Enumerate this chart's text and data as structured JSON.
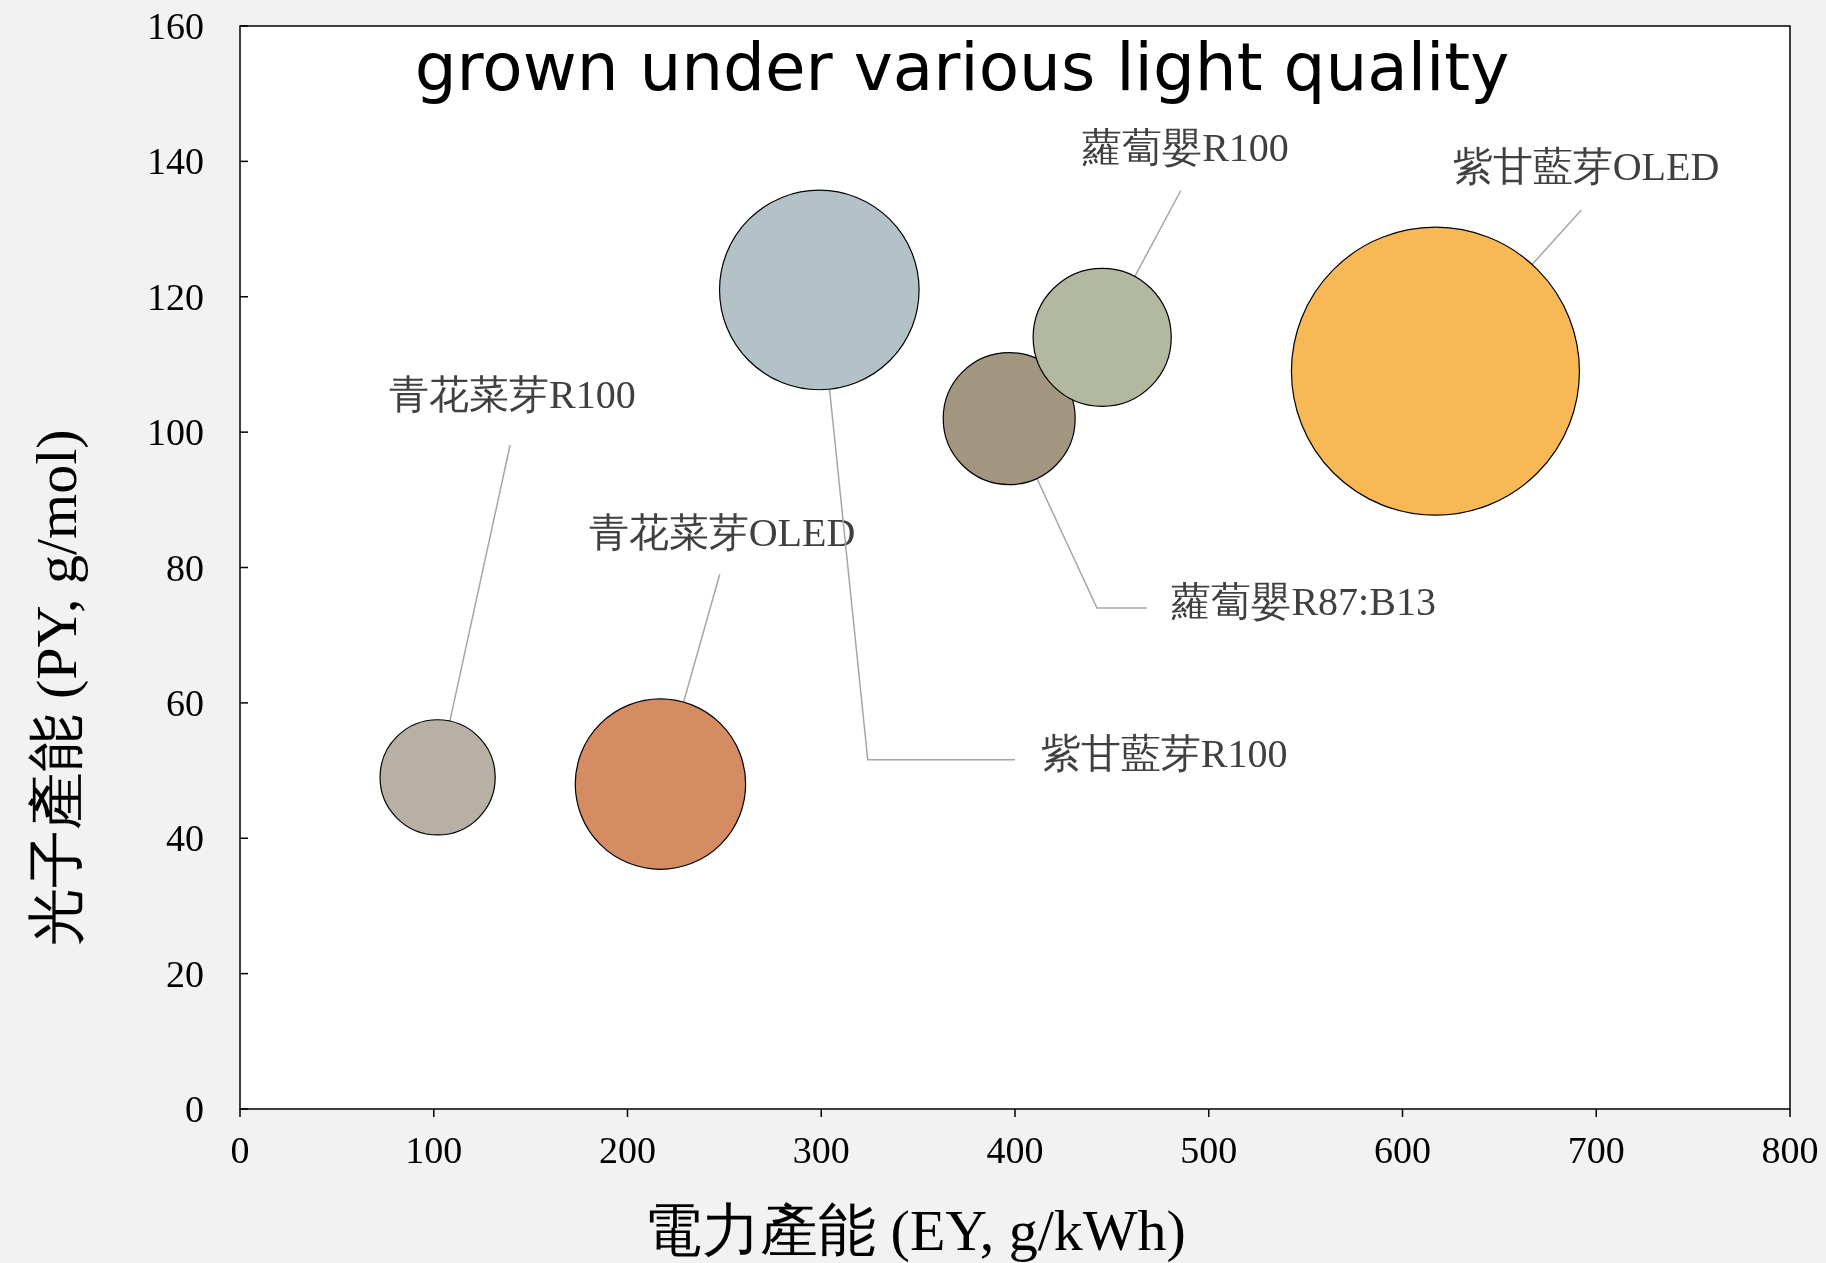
{
  "chart_data": {
    "type": "bubble",
    "title": "grown under various light quality",
    "xlabel": "電力產能 (EY, g/kWh)",
    "ylabel": "光子產能 (PY, g/mol)",
    "xlim": [
      0,
      800
    ],
    "xticks": [
      0,
      100,
      200,
      300,
      400,
      500,
      600,
      700,
      800
    ],
    "ylim": [
      0,
      160
    ],
    "yticks": [
      0,
      20,
      40,
      60,
      80,
      100,
      120,
      140,
      160
    ],
    "series": [
      {
        "name": "青花菜芽R100",
        "color": "#b8b0a4",
        "x": [
          102
        ],
        "values": [
          49
        ],
        "sizes": [
          0.16
        ]
      },
      {
        "name": "青花菜芽OLED",
        "color": "#d68c63",
        "x": [
          217
        ],
        "values": [
          48
        ],
        "sizes": [
          0.35
        ]
      },
      {
        "name": "紫甘藍芽R100",
        "color": "#b3c2c7",
        "x": [
          299
        ],
        "values": [
          121
        ],
        "sizes": [
          0.48
        ]
      },
      {
        "name": "蘿蔔嬰R87:B13",
        "color": "#a39681",
        "x": [
          397
        ],
        "values": [
          102
        ],
        "sizes": [
          0.21
        ]
      },
      {
        "name": "蘿蔔嬰R100",
        "color": "#b3b9a0",
        "x": [
          445
        ],
        "values": [
          114
        ],
        "sizes": [
          0.23
        ]
      },
      {
        "name": "紫甘藍芽OLED",
        "color": "#f7b855",
        "x": [
          617
        ],
        "values": [
          109
        ],
        "sizes": [
          1
        ]
      }
    ]
  }
}
